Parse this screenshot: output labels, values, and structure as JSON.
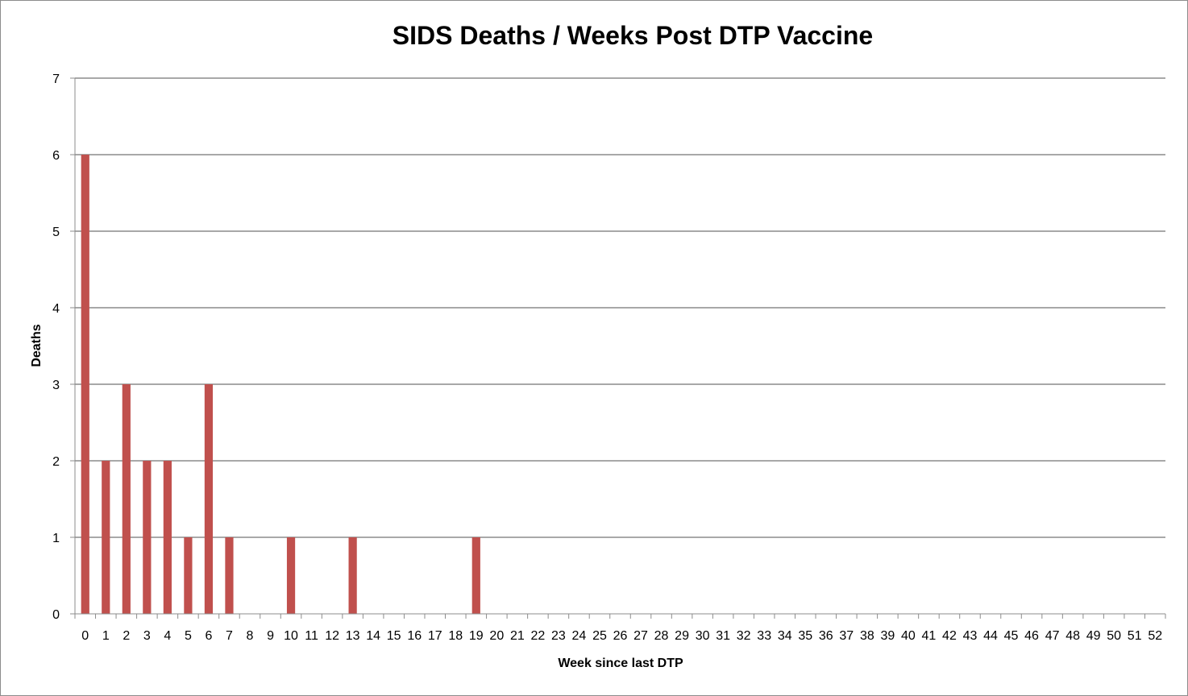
{
  "chart_data": {
    "type": "bar",
    "title": "SIDS Deaths / Weeks Post DTP Vaccine",
    "xlabel": "Week since last DTP",
    "ylabel": "Deaths",
    "ylim": [
      0,
      7
    ],
    "yticks": [
      0,
      1,
      2,
      3,
      4,
      5,
      6,
      7
    ],
    "grid": true,
    "legend": "none",
    "categories": [
      "0",
      "1",
      "2",
      "3",
      "4",
      "5",
      "6",
      "7",
      "8",
      "9",
      "10",
      "11",
      "12",
      "13",
      "14",
      "15",
      "16",
      "17",
      "18",
      "19",
      "20",
      "21",
      "22",
      "23",
      "24",
      "25",
      "26",
      "27",
      "28",
      "29",
      "30",
      "31",
      "32",
      "33",
      "34",
      "35",
      "36",
      "37",
      "38",
      "39",
      "40",
      "41",
      "42",
      "43",
      "44",
      "45",
      "46",
      "47",
      "48",
      "49",
      "50",
      "51",
      "52"
    ],
    "series": [
      {
        "name": "Deaths",
        "color": "#C0504D",
        "values": [
          6,
          2,
          3,
          2,
          2,
          1,
          3,
          1,
          0,
          0,
          1,
          0,
          0,
          1,
          0,
          0,
          0,
          0,
          0,
          1,
          0,
          0,
          0,
          0,
          0,
          0,
          0,
          0,
          0,
          0,
          0,
          0,
          0,
          0,
          0,
          0,
          0,
          0,
          0,
          0,
          0,
          0,
          0,
          0,
          0,
          0,
          0,
          0,
          0,
          0,
          0,
          0,
          0
        ]
      }
    ]
  }
}
